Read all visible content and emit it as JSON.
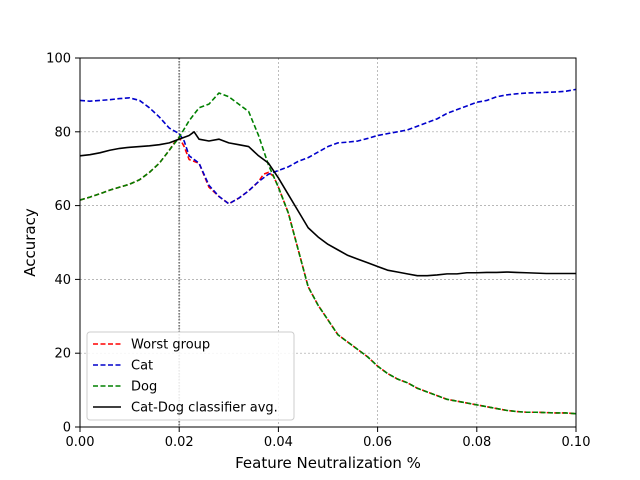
{
  "chart_data": {
    "type": "line",
    "title": "",
    "xlabel": "Feature Neutralization %",
    "ylabel": "Accuracy",
    "xlim": [
      0,
      0.1
    ],
    "ylim": [
      0,
      100
    ],
    "x_ticks": [
      "0.00",
      "0.02",
      "0.04",
      "0.06",
      "0.08",
      "0.10"
    ],
    "y_ticks": [
      "0",
      "20",
      "40",
      "60",
      "80",
      "100"
    ],
    "x_tick_values": [
      0,
      0.02,
      0.04,
      0.06,
      0.08,
      0.1
    ],
    "y_tick_values": [
      0,
      20,
      40,
      60,
      80,
      100
    ],
    "grid": true,
    "legend_position": "lower-left",
    "vertical_line": {
      "x": 0.02,
      "style": "dotted",
      "color": "#808080"
    },
    "series": [
      {
        "name": "Worst group",
        "color": "#ff0000",
        "style": "dashed",
        "x": [
          0,
          0.002,
          0.004,
          0.006,
          0.008,
          0.01,
          0.012,
          0.014,
          0.016,
          0.018,
          0.019,
          0.02,
          0.021,
          0.022,
          0.024,
          0.026,
          0.028,
          0.03,
          0.032,
          0.034,
          0.036,
          0.037,
          0.038,
          0.039,
          0.04,
          0.042,
          0.044,
          0.046,
          0.048,
          0.05,
          0.052,
          0.054,
          0.056,
          0.058,
          0.06,
          0.062,
          0.064,
          0.066,
          0.068,
          0.07,
          0.072,
          0.074,
          0.076,
          0.078,
          0.08,
          0.082,
          0.084,
          0.086,
          0.088,
          0.09,
          0.092,
          0.094,
          0.096,
          0.098,
          0.1
        ],
        "y": [
          61.5,
          62.3,
          63.2,
          64.2,
          65.0,
          65.8,
          67.0,
          69.0,
          71.5,
          75.0,
          77.0,
          78.5,
          76.0,
          72.5,
          71.5,
          65.0,
          62.5,
          60.5,
          62.0,
          64.0,
          66.5,
          68.5,
          69.0,
          68.0,
          65.0,
          58.0,
          48.0,
          38.0,
          33.0,
          29.0,
          25.0,
          23.0,
          21.0,
          19.0,
          16.5,
          14.5,
          13.0,
          12.0,
          10.5,
          9.5,
          8.5,
          7.5,
          7.0,
          6.5,
          6.0,
          5.5,
          5.0,
          4.5,
          4.2,
          4.0,
          4.0,
          3.9,
          3.8,
          3.8,
          3.6
        ]
      },
      {
        "name": "Cat",
        "color": "#0000cc",
        "style": "dashed",
        "x": [
          0,
          0.002,
          0.004,
          0.006,
          0.008,
          0.01,
          0.012,
          0.014,
          0.016,
          0.018,
          0.02,
          0.021,
          0.022,
          0.024,
          0.026,
          0.028,
          0.03,
          0.032,
          0.034,
          0.036,
          0.038,
          0.04,
          0.042,
          0.044,
          0.046,
          0.048,
          0.05,
          0.052,
          0.054,
          0.056,
          0.058,
          0.06,
          0.062,
          0.064,
          0.066,
          0.068,
          0.07,
          0.072,
          0.074,
          0.076,
          0.078,
          0.08,
          0.082,
          0.084,
          0.086,
          0.088,
          0.09,
          0.092,
          0.094,
          0.096,
          0.098,
          0.1
        ],
        "y": [
          88.5,
          88.3,
          88.5,
          88.7,
          89.0,
          89.2,
          88.5,
          86.5,
          84.0,
          81.0,
          79.5,
          77.5,
          73.5,
          71.5,
          65.5,
          62.5,
          60.5,
          62.0,
          64.0,
          66.5,
          68.5,
          69.5,
          70.5,
          72.0,
          73.0,
          74.5,
          76.0,
          77.0,
          77.2,
          77.5,
          78.2,
          79.0,
          79.5,
          80.0,
          80.5,
          81.5,
          82.5,
          83.5,
          85.0,
          86.0,
          87.0,
          88.0,
          88.5,
          89.5,
          90.0,
          90.3,
          90.5,
          90.6,
          90.7,
          90.8,
          91.0,
          91.5
        ]
      },
      {
        "name": "Dog",
        "color": "#008000",
        "style": "dashed",
        "x": [
          0,
          0.002,
          0.004,
          0.006,
          0.008,
          0.01,
          0.012,
          0.014,
          0.016,
          0.018,
          0.02,
          0.022,
          0.024,
          0.026,
          0.028,
          0.03,
          0.032,
          0.034,
          0.036,
          0.037,
          0.038,
          0.039,
          0.04,
          0.042,
          0.044,
          0.046,
          0.048,
          0.05,
          0.052,
          0.054,
          0.056,
          0.058,
          0.06,
          0.062,
          0.064,
          0.066,
          0.068,
          0.07,
          0.072,
          0.074,
          0.076,
          0.078,
          0.08,
          0.082,
          0.084,
          0.086,
          0.088,
          0.09,
          0.092,
          0.094,
          0.096,
          0.098,
          0.1
        ],
        "y": [
          61.5,
          62.3,
          63.2,
          64.2,
          65.0,
          65.8,
          67.0,
          69.0,
          71.5,
          75.0,
          78.5,
          83.0,
          86.5,
          87.5,
          90.5,
          89.5,
          87.5,
          85.5,
          79.0,
          75.0,
          71.0,
          68.0,
          65.0,
          58.0,
          48.0,
          38.0,
          33.0,
          29.0,
          25.0,
          23.0,
          21.0,
          19.0,
          16.5,
          14.5,
          13.0,
          12.0,
          10.5,
          9.5,
          8.5,
          7.5,
          7.0,
          6.5,
          6.0,
          5.5,
          5.0,
          4.5,
          4.2,
          4.0,
          4.0,
          3.9,
          3.8,
          3.8,
          3.6
        ]
      },
      {
        "name": "Cat-Dog classifier avg.",
        "color": "#000000",
        "style": "solid",
        "x": [
          0,
          0.002,
          0.004,
          0.006,
          0.008,
          0.01,
          0.012,
          0.014,
          0.016,
          0.018,
          0.02,
          0.022,
          0.023,
          0.024,
          0.026,
          0.028,
          0.03,
          0.032,
          0.034,
          0.036,
          0.038,
          0.04,
          0.042,
          0.044,
          0.046,
          0.048,
          0.05,
          0.052,
          0.054,
          0.056,
          0.058,
          0.06,
          0.062,
          0.064,
          0.066,
          0.068,
          0.07,
          0.072,
          0.074,
          0.076,
          0.078,
          0.08,
          0.082,
          0.084,
          0.086,
          0.088,
          0.09,
          0.092,
          0.094,
          0.096,
          0.098,
          0.1
        ],
        "y": [
          73.5,
          73.8,
          74.3,
          75.0,
          75.5,
          75.8,
          76.0,
          76.2,
          76.5,
          77.0,
          78.0,
          79.0,
          80.0,
          78.0,
          77.5,
          78.0,
          77.0,
          76.5,
          76.0,
          73.5,
          71.5,
          67.5,
          63.0,
          58.5,
          54.0,
          51.5,
          49.5,
          48.0,
          46.5,
          45.5,
          44.5,
          43.5,
          42.5,
          42.0,
          41.5,
          41.0,
          41.0,
          41.2,
          41.5,
          41.5,
          41.8,
          41.8,
          41.9,
          41.9,
          42.0,
          41.9,
          41.8,
          41.7,
          41.6,
          41.6,
          41.6,
          41.6
        ]
      }
    ]
  }
}
